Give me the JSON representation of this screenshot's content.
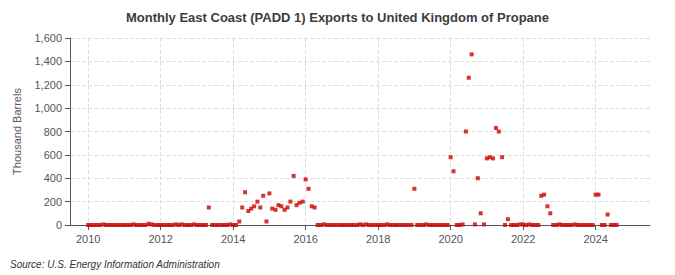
{
  "chart_data": {
    "type": "scatter",
    "title": "Monthly East Coast (PADD 1) Exports to United Kingdom of Propane",
    "ylabel": "Thousand Barrels",
    "annotations": [
      "Source: U.S. Energy Information Administration"
    ],
    "color": "#cc0000",
    "marker": "square",
    "grid": true,
    "xlim": [
      2009.5,
      2025.5
    ],
    "xticks": [
      2010,
      2012,
      2014,
      2016,
      2018,
      2020,
      2022,
      2024
    ],
    "ylim": [
      0,
      1600
    ],
    "yticks": [
      0,
      200,
      400,
      600,
      800,
      {
        "value": 1000,
        "label": "1,000"
      },
      {
        "value": 1200,
        "label": "1,200"
      },
      {
        "value": 1400,
        "label": "1,400"
      },
      {
        "value": 1600,
        "label": "1,600"
      }
    ],
    "x": [
      2010.0,
      2010.08,
      2010.17,
      2010.25,
      2010.33,
      2010.42,
      2010.5,
      2010.58,
      2010.67,
      2010.75,
      2010.83,
      2010.92,
      2011.0,
      2011.08,
      2011.17,
      2011.25,
      2011.33,
      2011.42,
      2011.5,
      2011.58,
      2011.67,
      2011.75,
      2011.83,
      2011.92,
      2012.0,
      2012.08,
      2012.17,
      2012.25,
      2012.33,
      2012.42,
      2012.5,
      2012.58,
      2012.67,
      2012.75,
      2012.83,
      2012.92,
      2013.0,
      2013.08,
      2013.17,
      2013.25,
      2013.33,
      2013.42,
      2013.5,
      2013.58,
      2013.67,
      2013.75,
      2013.83,
      2013.92,
      2014.0,
      2014.08,
      2014.17,
      2014.25,
      2014.33,
      2014.42,
      2014.5,
      2014.58,
      2014.67,
      2014.75,
      2014.83,
      2014.92,
      2015.0,
      2015.08,
      2015.17,
      2015.25,
      2015.33,
      2015.42,
      2015.5,
      2015.58,
      2015.67,
      2015.75,
      2015.83,
      2015.92,
      2016.0,
      2016.08,
      2016.17,
      2016.25,
      2016.33,
      2016.42,
      2016.5,
      2016.58,
      2016.67,
      2016.75,
      2016.83,
      2016.92,
      2017.0,
      2017.08,
      2017.17,
      2017.25,
      2017.33,
      2017.42,
      2017.5,
      2017.58,
      2017.67,
      2017.75,
      2017.83,
      2017.92,
      2018.0,
      2018.08,
      2018.17,
      2018.25,
      2018.33,
      2018.42,
      2018.5,
      2018.58,
      2018.67,
      2018.75,
      2018.83,
      2018.92,
      2019.0,
      2019.08,
      2019.17,
      2019.25,
      2019.33,
      2019.42,
      2019.5,
      2019.58,
      2019.67,
      2019.75,
      2019.83,
      2019.92,
      2020.0,
      2020.08,
      2020.17,
      2020.25,
      2020.33,
      2020.42,
      2020.5,
      2020.58,
      2020.67,
      2020.75,
      2020.83,
      2020.92,
      2021.0,
      2021.08,
      2021.17,
      2021.25,
      2021.33,
      2021.42,
      2021.5,
      2021.58,
      2021.67,
      2021.75,
      2021.83,
      2021.92,
      2022.0,
      2022.08,
      2022.17,
      2022.25,
      2022.33,
      2022.42,
      2022.5,
      2022.58,
      2022.67,
      2022.75,
      2022.83,
      2022.92,
      2023.0,
      2023.08,
      2023.17,
      2023.25,
      2023.33,
      2023.42,
      2023.5,
      2023.58,
      2023.67,
      2023.75,
      2023.83,
      2023.92,
      2024.0,
      2024.08,
      2024.17,
      2024.25,
      2024.33,
      2024.42,
      2024.5,
      2024.58
    ],
    "values": [
      0,
      0,
      0,
      0,
      0,
      5,
      0,
      0,
      0,
      0,
      0,
      0,
      0,
      0,
      0,
      5,
      0,
      0,
      0,
      0,
      10,
      5,
      0,
      0,
      0,
      0,
      0,
      0,
      0,
      5,
      0,
      5,
      0,
      0,
      0,
      5,
      0,
      0,
      0,
      0,
      150,
      0,
      0,
      0,
      0,
      0,
      0,
      5,
      0,
      0,
      30,
      150,
      280,
      120,
      140,
      160,
      200,
      150,
      250,
      30,
      270,
      140,
      130,
      170,
      160,
      130,
      150,
      200,
      420,
      170,
      190,
      200,
      390,
      310,
      160,
      150,
      0,
      0,
      5,
      0,
      0,
      0,
      0,
      0,
      0,
      0,
      0,
      0,
      0,
      0,
      5,
      0,
      5,
      0,
      0,
      0,
      0,
      0,
      0,
      5,
      0,
      0,
      0,
      0,
      0,
      0,
      0,
      0,
      310,
      0,
      0,
      0,
      5,
      0,
      0,
      0,
      0,
      0,
      0,
      0,
      580,
      460,
      0,
      0,
      5,
      800,
      1260,
      1460,
      5,
      400,
      100,
      5,
      570,
      580,
      570,
      830,
      800,
      580,
      0,
      50,
      0,
      0,
      0,
      5,
      5,
      0,
      5,
      0,
      0,
      0,
      250,
      260,
      160,
      100,
      0,
      0,
      5,
      0,
      0,
      0,
      0,
      5,
      0,
      0,
      0,
      0,
      0,
      0,
      260,
      260,
      0,
      0,
      90,
      0,
      0,
      0
    ]
  }
}
